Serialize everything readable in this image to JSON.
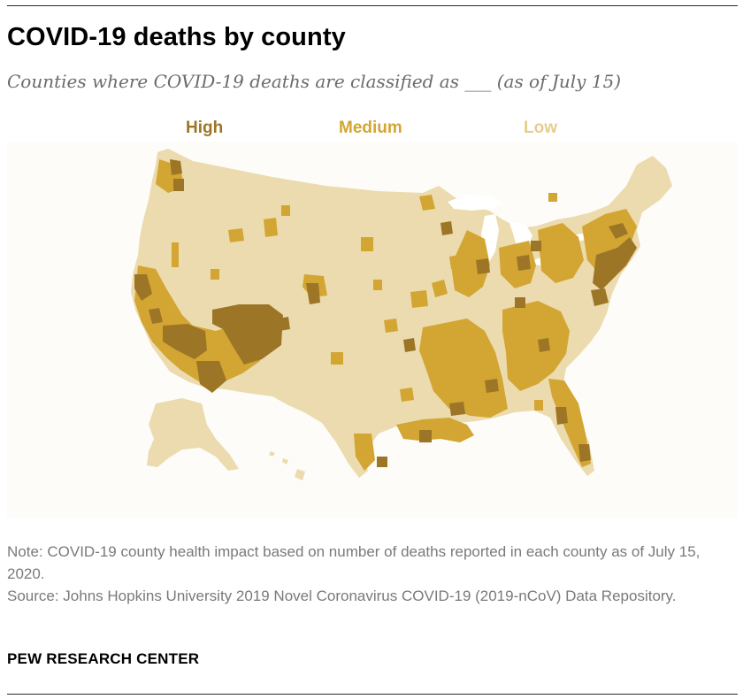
{
  "title": "COVID-19 deaths by county",
  "subtitle": "Counties where COVID-19 deaths are classified as ___ (as of July 15)",
  "legend": [
    {
      "label": "High",
      "color": "#9c7626"
    },
    {
      "label": "Medium",
      "color": "#d3a532"
    },
    {
      "label": "Low",
      "color": "#ecdbae"
    }
  ],
  "map": {
    "region": "United States counties",
    "categories": [
      "High",
      "Medium",
      "Low"
    ],
    "colors": {
      "high": "#9c7626",
      "medium": "#d3a532",
      "low": "#ecdbae",
      "lakes": "#ffffff"
    }
  },
  "note": "Note: COVID-19 county health impact based on number of deaths reported in each county as of July 15, 2020.",
  "source": "Source: Johns Hopkins University 2019 Novel Coronavirus COVID-19 (2019-nCoV) Data Repository.",
  "branding": "PEW RESEARCH CENTER"
}
